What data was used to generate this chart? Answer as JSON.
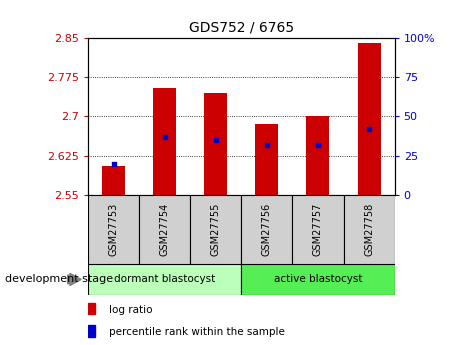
{
  "title": "GDS752 / 6765",
  "samples": [
    "GSM27753",
    "GSM27754",
    "GSM27755",
    "GSM27756",
    "GSM27757",
    "GSM27758"
  ],
  "bar_bottom": 2.55,
  "bar_tops": [
    2.605,
    2.755,
    2.745,
    2.685,
    2.7,
    2.84
  ],
  "ylim_left": [
    2.55,
    2.85
  ],
  "ylim_right": [
    0,
    100
  ],
  "yticks_left": [
    2.55,
    2.625,
    2.7,
    2.775,
    2.85
  ],
  "yticks_right": [
    0,
    25,
    50,
    75,
    100
  ],
  "percentile_pct": [
    20,
    37,
    35,
    32,
    32,
    42
  ],
  "bar_color": "#cc0000",
  "percentile_color": "#0000cc",
  "plot_bg": "#ffffff",
  "group1_label": "dormant blastocyst",
  "group2_label": "active blastocyst",
  "group1_color": "#bbffbb",
  "group2_color": "#55ee55",
  "group1_indices": [
    0,
    1,
    2
  ],
  "group2_indices": [
    3,
    4,
    5
  ],
  "dev_stage_label": "development stage",
  "legend_items": [
    "log ratio",
    "percentile rank within the sample"
  ],
  "tick_color_left": "#cc0000",
  "tick_color_right": "#0000cc",
  "bar_width": 0.45
}
